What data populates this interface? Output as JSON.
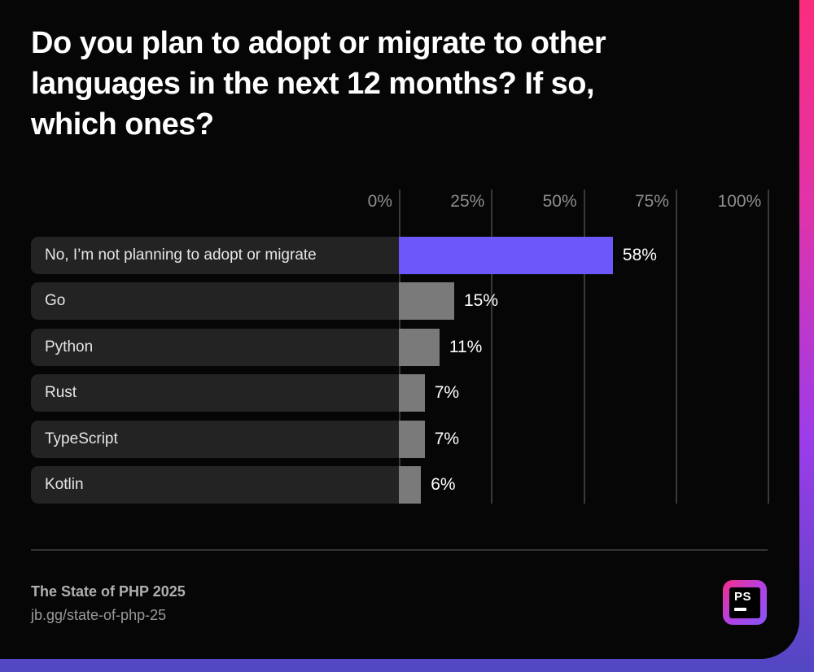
{
  "title": {
    "lines": [
      "Do you plan to adopt or migrate to other",
      "languages in the next 12 months? If so,",
      "which ones?"
    ]
  },
  "chart_data": {
    "type": "bar",
    "orientation": "horizontal",
    "title": "Do you plan to adopt or migrate to other languages in the next 12 months? If so, which ones?",
    "categories": [
      "No, I’m not planning to adopt or migrate",
      "Go",
      "Python",
      "Rust",
      "TypeScript",
      "Kotlin"
    ],
    "values": [
      58,
      15,
      11,
      7,
      7,
      6
    ],
    "value_labels": [
      "58%",
      "15%",
      "11%",
      "7%",
      "7%",
      "6%"
    ],
    "x_axis": {
      "tick_labels": [
        "0%",
        "25%",
        "50%",
        "75%",
        "100%"
      ],
      "tick_values": [
        0,
        25,
        50,
        75,
        100
      ],
      "min": 0,
      "max": 100
    },
    "highlight_index": 0,
    "highlight_color": "#6b57fa",
    "bar_color": "#7a7a7a",
    "grid": true,
    "legend": false
  },
  "footer": {
    "source_title": "The State of PHP 2025",
    "source_url": "jb.gg/state-of-php-25",
    "logo": {
      "text": "PS"
    }
  },
  "theme": {
    "canvas_background": "#060606",
    "pill_background": "#232323",
    "grid_color": "#3a3a3a",
    "tick_color": "#8f8f8f",
    "category_color": "#e6e6e6",
    "value_color": "#ffffff",
    "title_color": "#ffffff",
    "footer_title_color": "#b0b0b0",
    "footer_url_color": "#999999",
    "edge_gradient": [
      "#fb2c7d",
      "#e133a8",
      "#9d3cea",
      "#5147c2"
    ]
  }
}
